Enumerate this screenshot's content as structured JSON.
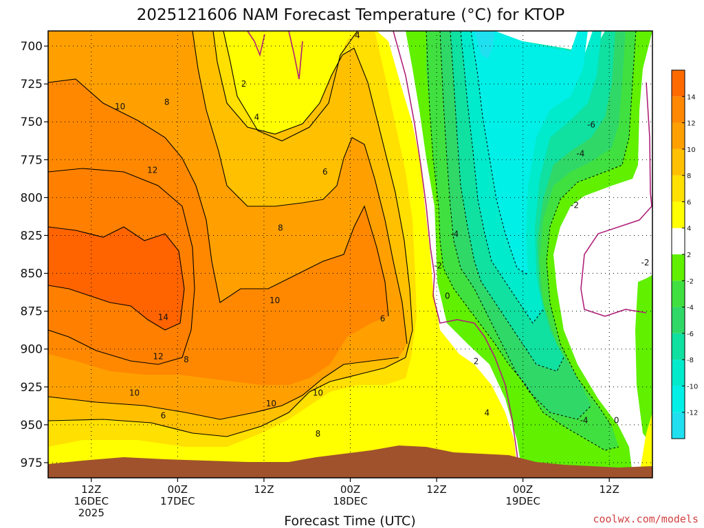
{
  "chart_data": {
    "type": "contour",
    "title": "2025121606 NAM Forecast Temperature (°C) for KTOP",
    "xlabel": "Forecast Time (UTC)",
    "ylabel": "",
    "ylim": [
      690,
      985
    ],
    "y_ticks": [
      700,
      725,
      750,
      775,
      800,
      825,
      850,
      875,
      900,
      925,
      950,
      975
    ],
    "x_ticks": [
      {
        "hour": 6,
        "lines": [
          "12Z",
          "16DEC",
          "2025"
        ]
      },
      {
        "hour": 18,
        "lines": [
          "00Z",
          "17DEC"
        ]
      },
      {
        "hour": 30,
        "lines": [
          "12Z"
        ]
      },
      {
        "hour": 42,
        "lines": [
          "00Z",
          "18DEC"
        ]
      },
      {
        "hour": 54,
        "lines": [
          "12Z"
        ]
      },
      {
        "hour": 66,
        "lines": [
          "00Z",
          "19DEC"
        ]
      },
      {
        "hour": 78,
        "lines": [
          "12Z"
        ]
      }
    ],
    "xlim": [
      0,
      84
    ],
    "grid": true,
    "colorbar": {
      "levels": [
        -14,
        -12,
        -10,
        -8,
        -6,
        -4,
        -2,
        2,
        4,
        6,
        8,
        10,
        12,
        14,
        16
      ],
      "tick_labels": [
        "-12",
        "-10",
        "-8",
        "-6",
        "-4",
        "-2",
        "2",
        "4",
        "6",
        "8",
        "10",
        "12",
        "14"
      ],
      "colors": [
        "#20e0f0",
        "#00f0e8",
        "#00eacc",
        "#10e0a0",
        "#30d868",
        "#40e040",
        "#60f000",
        "#ffffff",
        "#ffff00",
        "#ffe000",
        "#ffc000",
        "#ffa000",
        "#ff8800",
        "#ff6a00"
      ]
    },
    "contour_labels": [
      {
        "text": "2",
        "hour": 27.2,
        "p": 725
      },
      {
        "text": "4",
        "hour": 29.0,
        "p": 747
      },
      {
        "text": "4",
        "hour": 43.0,
        "p": 693
      },
      {
        "text": "6",
        "hour": 38.5,
        "p": 783
      },
      {
        "text": "8",
        "hour": 16.5,
        "p": 737
      },
      {
        "text": "10",
        "hour": 10.0,
        "p": 740
      },
      {
        "text": "12",
        "hour": 14.5,
        "p": 782
      },
      {
        "text": "8",
        "hour": 32.3,
        "p": 820
      },
      {
        "text": "10",
        "hour": 31.5,
        "p": 868
      },
      {
        "text": "14",
        "hour": 16.0,
        "p": 879
      },
      {
        "text": "12",
        "hour": 15.3,
        "p": 905
      },
      {
        "text": "8",
        "hour": 19.2,
        "p": 907
      },
      {
        "text": "10",
        "hour": 12.0,
        "p": 929
      },
      {
        "text": "6",
        "hour": 16.0,
        "p": 944
      },
      {
        "text": "10",
        "hour": 31.0,
        "p": 936
      },
      {
        "text": "10",
        "hour": 37.5,
        "p": 929
      },
      {
        "text": "8",
        "hour": 37.5,
        "p": 956
      },
      {
        "text": "6",
        "hour": 46.5,
        "p": 880
      },
      {
        "text": "-2",
        "hour": 54.2,
        "p": 845
      },
      {
        "text": "-4",
        "hour": 56.5,
        "p": 824
      },
      {
        "text": "0",
        "hour": 55.5,
        "p": 865
      },
      {
        "text": "2",
        "hour": 59.5,
        "p": 908
      },
      {
        "text": "4",
        "hour": 61.0,
        "p": 942
      },
      {
        "text": "-6",
        "hour": 75.5,
        "p": 752
      },
      {
        "text": "-4",
        "hour": 74.0,
        "p": 771
      },
      {
        "text": "-2",
        "hour": 73.2,
        "p": 805
      },
      {
        "text": "-2",
        "hour": 83.0,
        "p": 843
      },
      {
        "text": "-4",
        "hour": 74.5,
        "p": 947
      },
      {
        "text": "0",
        "hour": 79.0,
        "p": 947
      }
    ]
  },
  "credit": "coolwx.com/models"
}
